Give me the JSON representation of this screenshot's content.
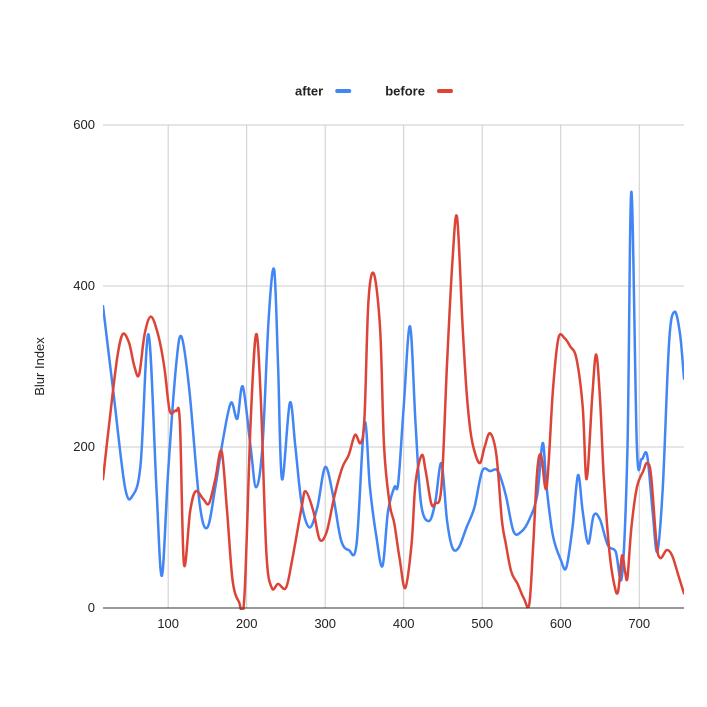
{
  "chart_data": {
    "type": "line",
    "title": "",
    "xlabel": "",
    "ylabel": "Blur Index",
    "xlim": [
      17,
      757
    ],
    "ylim": [
      0,
      600
    ],
    "x_ticks": [
      "100",
      "200",
      "300",
      "400",
      "500",
      "600",
      "700"
    ],
    "x_tick_values": [
      100,
      200,
      300,
      400,
      500,
      600,
      700
    ],
    "y_ticks": [
      "0",
      "200",
      "400",
      "600"
    ],
    "y_tick_values": [
      0,
      200,
      400,
      600
    ],
    "grid": true,
    "legend": "top",
    "series": [
      {
        "name": "after",
        "color": "#4285f4",
        "points": [
          [
            17,
            375
          ],
          [
            30,
            270
          ],
          [
            45,
            150
          ],
          [
            55,
            140
          ],
          [
            65,
            180
          ],
          [
            75,
            340
          ],
          [
            85,
            150
          ],
          [
            92,
            40
          ],
          [
            100,
            170
          ],
          [
            110,
            300
          ],
          [
            117,
            337
          ],
          [
            127,
            270
          ],
          [
            140,
            130
          ],
          [
            150,
            100
          ],
          [
            160,
            150
          ],
          [
            170,
            210
          ],
          [
            180,
            255
          ],
          [
            188,
            235
          ],
          [
            195,
            275
          ],
          [
            205,
            200
          ],
          [
            212,
            150
          ],
          [
            220,
            200
          ],
          [
            228,
            360
          ],
          [
            235,
            420
          ],
          [
            240,
            300
          ],
          [
            245,
            160
          ],
          [
            255,
            255
          ],
          [
            262,
            200
          ],
          [
            270,
            130
          ],
          [
            280,
            100
          ],
          [
            290,
            125
          ],
          [
            300,
            175
          ],
          [
            310,
            140
          ],
          [
            320,
            85
          ],
          [
            330,
            72
          ],
          [
            340,
            80
          ],
          [
            350,
            230
          ],
          [
            357,
            150
          ],
          [
            365,
            90
          ],
          [
            373,
            52
          ],
          [
            380,
            120
          ],
          [
            388,
            150
          ],
          [
            393,
            155
          ],
          [
            400,
            250
          ],
          [
            408,
            350
          ],
          [
            415,
            230
          ],
          [
            422,
            130
          ],
          [
            432,
            108
          ],
          [
            440,
            130
          ],
          [
            448,
            180
          ],
          [
            455,
            110
          ],
          [
            462,
            75
          ],
          [
            470,
            75
          ],
          [
            480,
            100
          ],
          [
            490,
            125
          ],
          [
            500,
            170
          ],
          [
            510,
            170
          ],
          [
            520,
            170
          ],
          [
            530,
            140
          ],
          [
            540,
            95
          ],
          [
            550,
            95
          ],
          [
            560,
            110
          ],
          [
            570,
            140
          ],
          [
            577,
            205
          ],
          [
            582,
            150
          ],
          [
            590,
            90
          ],
          [
            600,
            60
          ],
          [
            607,
            50
          ],
          [
            615,
            100
          ],
          [
            622,
            165
          ],
          [
            628,
            120
          ],
          [
            635,
            80
          ],
          [
            642,
            115
          ],
          [
            650,
            110
          ],
          [
            660,
            78
          ],
          [
            670,
            70
          ],
          [
            678,
            40
          ],
          [
            685,
            200
          ],
          [
            690,
            517
          ],
          [
            697,
            200
          ],
          [
            703,
            185
          ],
          [
            710,
            190
          ],
          [
            717,
            120
          ],
          [
            723,
            70
          ],
          [
            730,
            150
          ],
          [
            738,
            330
          ],
          [
            745,
            368
          ],
          [
            752,
            340
          ],
          [
            757,
            285
          ]
        ]
      },
      {
        "name": "before",
        "color": "#db4437",
        "points": [
          [
            17,
            160
          ],
          [
            25,
            230
          ],
          [
            35,
            310
          ],
          [
            42,
            340
          ],
          [
            50,
            330
          ],
          [
            57,
            300
          ],
          [
            63,
            290
          ],
          [
            70,
            340
          ],
          [
            78,
            362
          ],
          [
            87,
            340
          ],
          [
            95,
            300
          ],
          [
            102,
            245
          ],
          [
            110,
            245
          ],
          [
            115,
            230
          ],
          [
            120,
            55
          ],
          [
            128,
            120
          ],
          [
            135,
            145
          ],
          [
            145,
            135
          ],
          [
            152,
            130
          ],
          [
            160,
            160
          ],
          [
            168,
            195
          ],
          [
            175,
            120
          ],
          [
            182,
            35
          ],
          [
            190,
            8
          ],
          [
            197,
            12
          ],
          [
            205,
            230
          ],
          [
            212,
            340
          ],
          [
            218,
            260
          ],
          [
            225,
            70
          ],
          [
            232,
            25
          ],
          [
            240,
            30
          ],
          [
            250,
            25
          ],
          [
            258,
            60
          ],
          [
            270,
            125
          ],
          [
            275,
            145
          ],
          [
            285,
            120
          ],
          [
            293,
            85
          ],
          [
            302,
            95
          ],
          [
            312,
            140
          ],
          [
            322,
            175
          ],
          [
            330,
            190
          ],
          [
            338,
            215
          ],
          [
            345,
            205
          ],
          [
            350,
            235
          ],
          [
            355,
            380
          ],
          [
            362,
            415
          ],
          [
            370,
            345
          ],
          [
            375,
            200
          ],
          [
            382,
            130
          ],
          [
            388,
            105
          ],
          [
            395,
            60
          ],
          [
            402,
            25
          ],
          [
            410,
            80
          ],
          [
            415,
            155
          ],
          [
            423,
            190
          ],
          [
            428,
            170
          ],
          [
            435,
            130
          ],
          [
            440,
            130
          ],
          [
            448,
            150
          ],
          [
            455,
            300
          ],
          [
            462,
            430
          ],
          [
            468,
            485
          ],
          [
            475,
            350
          ],
          [
            480,
            270
          ],
          [
            485,
            220
          ],
          [
            490,
            195
          ],
          [
            497,
            180
          ],
          [
            503,
            200
          ],
          [
            510,
            217
          ],
          [
            518,
            190
          ],
          [
            525,
            110
          ],
          [
            530,
            80
          ],
          [
            537,
            45
          ],
          [
            545,
            30
          ],
          [
            553,
            12
          ],
          [
            560,
            5
          ],
          [
            565,
            80
          ],
          [
            570,
            170
          ],
          [
            575,
            190
          ],
          [
            582,
            150
          ],
          [
            590,
            270
          ],
          [
            597,
            335
          ],
          [
            605,
            335
          ],
          [
            612,
            325
          ],
          [
            620,
            310
          ],
          [
            628,
            250
          ],
          [
            633,
            160
          ],
          [
            640,
            260
          ],
          [
            645,
            315
          ],
          [
            650,
            260
          ],
          [
            655,
            160
          ],
          [
            662,
            70
          ],
          [
            668,
            30
          ],
          [
            673,
            20
          ],
          [
            678,
            65
          ],
          [
            682,
            45
          ],
          [
            685,
            38
          ],
          [
            690,
            100
          ],
          [
            697,
            150
          ],
          [
            705,
            170
          ],
          [
            710,
            180
          ],
          [
            715,
            165
          ],
          [
            722,
            80
          ],
          [
            727,
            62
          ],
          [
            735,
            72
          ],
          [
            742,
            65
          ],
          [
            750,
            40
          ],
          [
            757,
            18
          ]
        ]
      }
    ]
  }
}
